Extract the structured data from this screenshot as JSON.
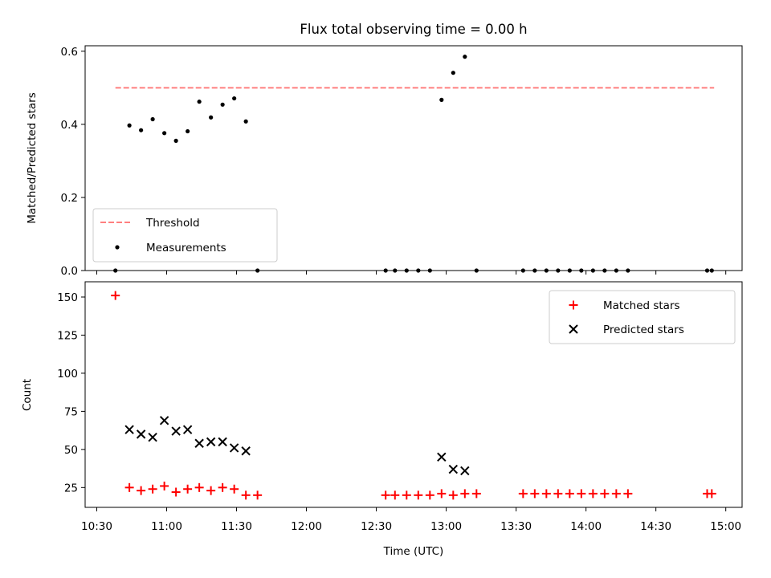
{
  "chart_data": [
    {
      "type": "scatter",
      "title": "Flux total observing time = 0.00 h",
      "xlabel": "",
      "ylabel": "Matched/Predicted stars",
      "ylim": [
        0,
        0.615
      ],
      "yticks": [
        "0.0",
        "0.2",
        "0.4",
        "0.6"
      ],
      "threshold": {
        "name": "Threshold",
        "value": 0.5,
        "x_start": "10:38",
        "x_end": "14:55",
        "color": "#ff7f7f"
      },
      "series": [
        {
          "name": "Measurements",
          "color": "#000000",
          "points": [
            [
              "10:38",
              0.0
            ],
            [
              "10:44",
              0.397
            ],
            [
              "10:49",
              0.384
            ],
            [
              "10:54",
              0.414
            ],
            [
              "10:59",
              0.376
            ],
            [
              "11:04",
              0.355
            ],
            [
              "11:09",
              0.381
            ],
            [
              "11:14",
              0.462
            ],
            [
              "11:19",
              0.419
            ],
            [
              "11:24",
              0.454
            ],
            [
              "11:29",
              0.471
            ],
            [
              "11:34",
              0.408
            ],
            [
              "11:39",
              0.0
            ],
            [
              "12:34",
              0.0
            ],
            [
              "12:38",
              0.0
            ],
            [
              "12:43",
              0.0
            ],
            [
              "12:48",
              0.0
            ],
            [
              "12:53",
              0.0
            ],
            [
              "12:58",
              0.467
            ],
            [
              "13:03",
              0.541
            ],
            [
              "13:08",
              0.585
            ],
            [
              "13:13",
              0.0
            ],
            [
              "13:33",
              0.0
            ],
            [
              "13:38",
              0.0
            ],
            [
              "13:43",
              0.0
            ],
            [
              "13:48",
              0.0
            ],
            [
              "13:53",
              0.0
            ],
            [
              "13:58",
              0.0
            ],
            [
              "14:03",
              0.0
            ],
            [
              "14:08",
              0.0
            ],
            [
              "14:13",
              0.0
            ],
            [
              "14:18",
              0.0
            ],
            [
              "14:52",
              0.0
            ],
            [
              "14:54",
              0.0
            ]
          ]
        }
      ],
      "legend": {
        "location": "lower-left",
        "entries": [
          "Threshold",
          "Measurements"
        ]
      }
    },
    {
      "type": "scatter",
      "title": "",
      "xlabel": "Time (UTC)",
      "ylabel": "Count",
      "ylim": [
        12,
        160
      ],
      "yticks": [
        "25",
        "50",
        "75",
        "100",
        "125",
        "150"
      ],
      "xticks": [
        "10:30",
        "11:00",
        "11:30",
        "12:00",
        "12:30",
        "13:00",
        "13:30",
        "14:00",
        "14:30",
        "15:00"
      ],
      "xlim": [
        "10:25",
        "15:07"
      ],
      "series": [
        {
          "name": "Matched stars",
          "marker": "+",
          "color": "#ff0000",
          "points": [
            [
              "10:38",
              151
            ],
            [
              "10:44",
              25
            ],
            [
              "10:49",
              23
            ],
            [
              "10:54",
              24
            ],
            [
              "10:59",
              26
            ],
            [
              "11:04",
              22
            ],
            [
              "11:09",
              24
            ],
            [
              "11:14",
              25
            ],
            [
              "11:19",
              23
            ],
            [
              "11:24",
              25
            ],
            [
              "11:29",
              24
            ],
            [
              "11:34",
              20
            ],
            [
              "11:39",
              20
            ],
            [
              "12:34",
              20
            ],
            [
              "12:38",
              20
            ],
            [
              "12:43",
              20
            ],
            [
              "12:48",
              20
            ],
            [
              "12:53",
              20
            ],
            [
              "12:58",
              21
            ],
            [
              "13:03",
              20
            ],
            [
              "13:08",
              21
            ],
            [
              "13:13",
              21
            ],
            [
              "13:33",
              21
            ],
            [
              "13:38",
              21
            ],
            [
              "13:43",
              21
            ],
            [
              "13:48",
              21
            ],
            [
              "13:53",
              21
            ],
            [
              "13:58",
              21
            ],
            [
              "14:03",
              21
            ],
            [
              "14:08",
              21
            ],
            [
              "14:13",
              21
            ],
            [
              "14:18",
              21
            ],
            [
              "14:52",
              21
            ],
            [
              "14:54",
              21
            ]
          ]
        },
        {
          "name": "Predicted stars",
          "marker": "x",
          "color": "#000000",
          "points": [
            [
              "10:44",
              63
            ],
            [
              "10:49",
              60
            ],
            [
              "10:54",
              58
            ],
            [
              "10:59",
              69
            ],
            [
              "11:04",
              62
            ],
            [
              "11:09",
              63
            ],
            [
              "11:14",
              54
            ],
            [
              "11:19",
              55
            ],
            [
              "11:24",
              55
            ],
            [
              "11:29",
              51
            ],
            [
              "11:34",
              49
            ],
            [
              "12:58",
              45
            ],
            [
              "13:03",
              37
            ],
            [
              "13:08",
              36
            ]
          ]
        }
      ],
      "legend": {
        "location": "top-right",
        "entries": [
          "Matched stars",
          "Predicted stars"
        ]
      }
    }
  ]
}
